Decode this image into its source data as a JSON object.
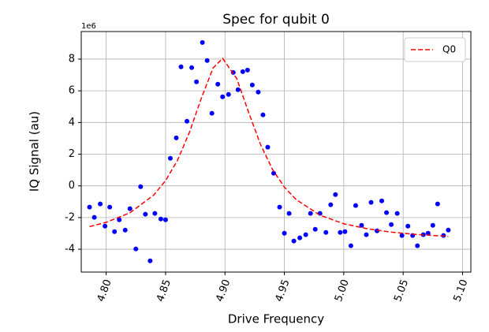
{
  "chart_data": {
    "type": "scatter",
    "title": "Spec for qubit 0",
    "x_label": "Drive Frequency",
    "y_label": "IQ Signal (au)",
    "y_offset_label": "1e6",
    "xlim": [
      4.779,
      5.107
    ],
    "ylim": [
      -5.44,
      9.74
    ],
    "xticks": [
      {
        "value": 4.8,
        "label": "4.80"
      },
      4.85,
      {
        "value": 4.9,
        "label": "4.90"
      },
      4.95,
      {
        "value": 5.0,
        "label": "5.00"
      },
      5.05,
      {
        "value": 5.1,
        "label": "5.10"
      }
    ],
    "yticks": [
      -4,
      -2,
      0,
      2,
      4,
      6,
      8
    ],
    "grid": true,
    "legend": "upper right",
    "series": [
      {
        "mode": "points",
        "color": "#0000ff",
        "x": [
          4.786,
          4.79,
          4.795,
          4.799,
          4.803,
          4.807,
          4.811,
          4.816,
          4.82,
          4.825,
          4.829,
          4.833,
          4.837,
          4.841,
          4.846,
          4.85,
          4.854,
          4.859,
          4.863,
          4.868,
          4.872,
          4.876,
          4.881,
          4.885,
          4.889,
          4.894,
          4.898,
          4.903,
          4.907,
          4.911,
          4.915,
          4.919,
          4.923,
          4.928,
          4.932,
          4.936,
          4.941,
          4.946,
          4.95,
          4.954,
          4.958,
          4.963,
          4.968,
          4.972,
          4.976,
          4.98,
          4.985,
          4.989,
          4.993,
          4.997,
          5.001,
          5.006,
          5.01,
          5.015,
          5.019,
          5.023,
          5.028,
          5.032,
          5.036,
          5.04,
          5.045,
          5.049,
          5.054,
          5.058,
          5.062,
          5.067,
          5.071,
          5.075,
          5.079,
          5.084,
          5.088
        ],
        "values": [
          -1.34,
          -1.99,
          -1.14,
          -2.54,
          -1.34,
          -2.89,
          -2.14,
          -2.79,
          -1.44,
          -3.98,
          -0.05,
          -1.79,
          -4.73,
          -1.74,
          -2.09,
          -2.14,
          1.74,
          3.03,
          7.51,
          4.08,
          7.46,
          6.57,
          9.05,
          7.91,
          4.58,
          6.42,
          5.62,
          5.77,
          7.16,
          6.07,
          7.21,
          7.31,
          6.37,
          5.92,
          4.48,
          2.44,
          0.8,
          -1.34,
          -2.99,
          -1.74,
          -3.48,
          -3.28,
          -3.08,
          -1.74,
          -2.74,
          -1.74,
          -2.94,
          -1.19,
          -0.55,
          -2.94,
          -2.89,
          -3.78,
          -1.24,
          -2.49,
          -3.08,
          -1.04,
          -2.84,
          -0.95,
          -1.69,
          -2.44,
          -1.74,
          -3.13,
          -2.54,
          -3.13,
          -3.78,
          -3.08,
          -2.99,
          -2.49,
          -1.14,
          -3.13,
          -2.79
        ]
      },
      {
        "mode": "dashed-line",
        "name": "Q0",
        "color": "#ff0000",
        "x": [
          4.786,
          4.8,
          4.82,
          4.84,
          4.85,
          4.86,
          4.87,
          4.88,
          4.89,
          4.898,
          4.91,
          4.92,
          4.93,
          4.94,
          4.95,
          4.96,
          4.98,
          5.0,
          5.02,
          5.04,
          5.06,
          5.088
        ],
        "values": [
          -2.57,
          -2.3,
          -1.7,
          -0.58,
          0.33,
          1.61,
          3.36,
          5.51,
          7.44,
          8.05,
          6.76,
          4.62,
          2.6,
          1.04,
          -0.08,
          -0.87,
          -1.85,
          -2.39,
          -2.71,
          -2.92,
          -3.06,
          -3.19
        ]
      }
    ]
  }
}
